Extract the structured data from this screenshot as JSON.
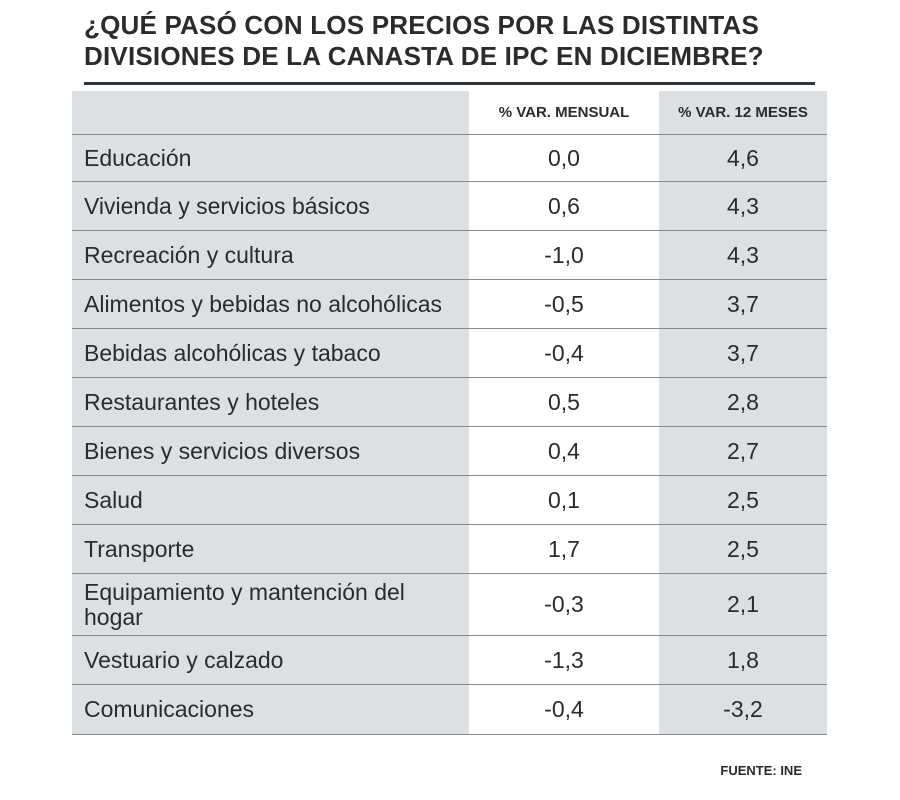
{
  "title": "¿QUÉ PASÓ CON LOS PRECIOS POR LAS DISTINTAS DIVISIONES DE LA CANASTA DE IPC EN DICIEMBRE?",
  "source": "FUENTE: INE",
  "colors": {
    "shaded": "#dde0e2",
    "text": "#2b2b2b",
    "rule": "#333333"
  },
  "chart_data": {
    "type": "table",
    "title": "¿QUÉ PASÓ CON LOS PRECIOS POR LAS DISTINTAS DIVISIONES DE LA CANASTA DE IPC EN DICIEMBRE?",
    "columns": [
      "",
      "% VAR. MENSUAL",
      "% VAR. 12 MESES"
    ],
    "rows": [
      {
        "category": "Educación",
        "mensual": "0,0",
        "doce_meses": "4,6"
      },
      {
        "category": "Vivienda y servicios básicos",
        "mensual": "0,6",
        "doce_meses": "4,3"
      },
      {
        "category": "Recreación y cultura",
        "mensual": "-1,0",
        "doce_meses": "4,3"
      },
      {
        "category": "Alimentos y bebidas no alcohólicas",
        "mensual": "-0,5",
        "doce_meses": "3,7"
      },
      {
        "category": "Bebidas alcohólicas y tabaco",
        "mensual": "-0,4",
        "doce_meses": "3,7"
      },
      {
        "category": "Restaurantes y hoteles",
        "mensual": "0,5",
        "doce_meses": "2,8"
      },
      {
        "category": "Bienes y servicios diversos",
        "mensual": "0,4",
        "doce_meses": "2,7"
      },
      {
        "category": "Salud",
        "mensual": "0,1",
        "doce_meses": "2,5"
      },
      {
        "category": "Transporte",
        "mensual": "1,7",
        "doce_meses": "2,5"
      },
      {
        "category": "Equipamiento y mantención del hogar",
        "mensual": "-0,3",
        "doce_meses": "2,1"
      },
      {
        "category": "Vestuario y calzado",
        "mensual": "-1,3",
        "doce_meses": "1,8"
      },
      {
        "category": "Comunicaciones",
        "mensual": "-0,4",
        "doce_meses": "-3,2"
      }
    ]
  }
}
